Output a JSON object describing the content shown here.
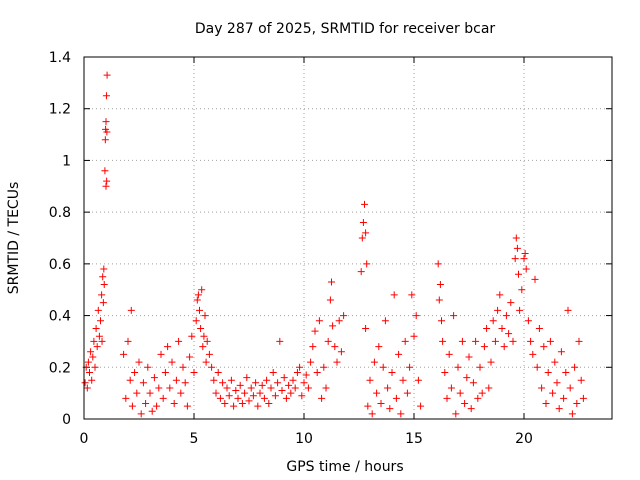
{
  "chart_data": {
    "type": "scatter",
    "title": "Day 287 of 2025, SRMTID for receiver bcar",
    "xlabel": "GPS time / hours",
    "ylabel": "SRMTID / TECUs",
    "xlim": [
      0,
      24
    ],
    "ylim": [
      0,
      1.4
    ],
    "xticks": [
      0,
      5,
      10,
      15,
      20
    ],
    "xtick_labels": [
      "0",
      "5",
      "10",
      "15",
      "20"
    ],
    "yticks": [
      0,
      0.2,
      0.4,
      0.6,
      0.8,
      1,
      1.2,
      1.4
    ],
    "ytick_labels": [
      "0",
      "0.2",
      "0.4",
      "0.6",
      "0.8",
      "1",
      "1.2",
      "1.4"
    ],
    "grid": true,
    "legend": "none",
    "marker": "+",
    "color": "#ff0000",
    "series": [
      {
        "name": "SRMTID",
        "points": [
          [
            0.05,
            0.14
          ],
          [
            0.1,
            0.2
          ],
          [
            0.15,
            0.12
          ],
          [
            0.2,
            0.22
          ],
          [
            0.25,
            0.18
          ],
          [
            0.3,
            0.26
          ],
          [
            0.35,
            0.15
          ],
          [
            0.4,
            0.24
          ],
          [
            0.45,
            0.3
          ],
          [
            0.5,
            0.2
          ],
          [
            0.55,
            0.35
          ],
          [
            0.6,
            0.28
          ],
          [
            0.65,
            0.42
          ],
          [
            0.7,
            0.32
          ],
          [
            0.75,
            0.38
          ],
          [
            0.8,
            0.48
          ],
          [
            0.85,
            0.55
          ],
          [
            0.9,
            0.58
          ],
          [
            0.92,
            0.52
          ],
          [
            0.95,
            0.96
          ],
          [
            0.97,
            1.08
          ],
          [
            1.0,
            1.15
          ],
          [
            1.02,
            1.25
          ],
          [
            1.05,
            1.33
          ],
          [
            1.0,
            0.9
          ],
          [
            1.03,
            0.92
          ],
          [
            0.98,
            1.12
          ],
          [
            1.04,
            1.11
          ],
          [
            0.88,
            0.45
          ],
          [
            0.82,
            0.3
          ],
          [
            1.8,
            0.25
          ],
          [
            1.9,
            0.08
          ],
          [
            2.0,
            0.3
          ],
          [
            2.1,
            0.15
          ],
          [
            2.15,
            0.42
          ],
          [
            2.2,
            0.05
          ],
          [
            2.3,
            0.18
          ],
          [
            2.4,
            0.1
          ],
          [
            2.5,
            0.22
          ],
          [
            2.6,
            0.02
          ],
          [
            2.7,
            0.14
          ],
          [
            2.8,
            0.06
          ],
          [
            2.9,
            0.2
          ],
          [
            3.0,
            0.1
          ],
          [
            3.1,
            0.03
          ],
          [
            3.2,
            0.16
          ],
          [
            3.3,
            0.05
          ],
          [
            3.4,
            0.12
          ],
          [
            3.5,
            0.25
          ],
          [
            3.6,
            0.08
          ],
          [
            3.7,
            0.18
          ],
          [
            3.8,
            0.28
          ],
          [
            3.9,
            0.12
          ],
          [
            4.0,
            0.22
          ],
          [
            4.1,
            0.06
          ],
          [
            4.2,
            0.15
          ],
          [
            4.3,
            0.3
          ],
          [
            4.4,
            0.1
          ],
          [
            4.5,
            0.2
          ],
          [
            4.6,
            0.14
          ],
          [
            4.7,
            0.05
          ],
          [
            4.8,
            0.24
          ],
          [
            4.9,
            0.32
          ],
          [
            5.0,
            0.18
          ],
          [
            5.1,
            0.38
          ],
          [
            5.15,
            0.46
          ],
          [
            5.2,
            0.48
          ],
          [
            5.25,
            0.42
          ],
          [
            5.3,
            0.35
          ],
          [
            5.35,
            0.5
          ],
          [
            5.4,
            0.28
          ],
          [
            5.45,
            0.32
          ],
          [
            5.5,
            0.4
          ],
          [
            5.55,
            0.22
          ],
          [
            5.6,
            0.3
          ],
          [
            5.7,
            0.25
          ],
          [
            5.8,
            0.2
          ],
          [
            5.9,
            0.15
          ],
          [
            6.0,
            0.1
          ],
          [
            6.1,
            0.18
          ],
          [
            6.2,
            0.08
          ],
          [
            6.3,
            0.14
          ],
          [
            6.4,
            0.06
          ],
          [
            6.5,
            0.12
          ],
          [
            6.6,
            0.09
          ],
          [
            6.7,
            0.15
          ],
          [
            6.8,
            0.05
          ],
          [
            6.9,
            0.11
          ],
          [
            7.0,
            0.08
          ],
          [
            7.1,
            0.13
          ],
          [
            7.2,
            0.06
          ],
          [
            7.3,
            0.1
          ],
          [
            7.4,
            0.16
          ],
          [
            7.5,
            0.07
          ],
          [
            7.6,
            0.12
          ],
          [
            7.7,
            0.09
          ],
          [
            7.8,
            0.14
          ],
          [
            7.9,
            0.05
          ],
          [
            8.0,
            0.1
          ],
          [
            8.1,
            0.13
          ],
          [
            8.2,
            0.08
          ],
          [
            8.3,
            0.15
          ],
          [
            8.4,
            0.06
          ],
          [
            8.5,
            0.12
          ],
          [
            8.6,
            0.18
          ],
          [
            8.7,
            0.09
          ],
          [
            8.8,
            0.14
          ],
          [
            8.9,
            0.3
          ],
          [
            9.0,
            0.11
          ],
          [
            9.1,
            0.16
          ],
          [
            9.2,
            0.08
          ],
          [
            9.3,
            0.13
          ],
          [
            9.4,
            0.1
          ],
          [
            9.5,
            0.15
          ],
          [
            9.6,
            0.12
          ],
          [
            9.7,
            0.18
          ],
          [
            9.8,
            0.2
          ],
          [
            9.9,
            0.09
          ],
          [
            10.0,
            0.14
          ],
          [
            10.1,
            0.17
          ],
          [
            10.2,
            0.12
          ],
          [
            10.3,
            0.22
          ],
          [
            10.4,
            0.28
          ],
          [
            10.5,
            0.34
          ],
          [
            10.6,
            0.18
          ],
          [
            10.7,
            0.38
          ],
          [
            10.8,
            0.08
          ],
          [
            10.9,
            0.2
          ],
          [
            11.0,
            0.12
          ],
          [
            11.1,
            0.3
          ],
          [
            11.2,
            0.46
          ],
          [
            11.25,
            0.53
          ],
          [
            11.3,
            0.36
          ],
          [
            11.4,
            0.28
          ],
          [
            11.5,
            0.22
          ],
          [
            11.6,
            0.38
          ],
          [
            11.7,
            0.26
          ],
          [
            11.8,
            0.4
          ],
          [
            12.6,
            0.57
          ],
          [
            12.65,
            0.7
          ],
          [
            12.7,
            0.76
          ],
          [
            12.75,
            0.83
          ],
          [
            12.8,
            0.72
          ],
          [
            12.85,
            0.6
          ],
          [
            12.8,
            0.35
          ],
          [
            12.9,
            0.05
          ],
          [
            13.0,
            0.15
          ],
          [
            13.1,
            0.02
          ],
          [
            13.2,
            0.22
          ],
          [
            13.3,
            0.1
          ],
          [
            13.4,
            0.28
          ],
          [
            13.5,
            0.06
          ],
          [
            13.6,
            0.2
          ],
          [
            13.7,
            0.38
          ],
          [
            13.8,
            0.12
          ],
          [
            13.9,
            0.04
          ],
          [
            14.0,
            0.18
          ],
          [
            14.1,
            0.48
          ],
          [
            14.2,
            0.08
          ],
          [
            14.3,
            0.25
          ],
          [
            14.4,
            0.02
          ],
          [
            14.5,
            0.15
          ],
          [
            14.6,
            0.3
          ],
          [
            14.7,
            0.1
          ],
          [
            14.8,
            0.2
          ],
          [
            14.9,
            0.48
          ],
          [
            15.0,
            0.32
          ],
          [
            15.1,
            0.4
          ],
          [
            15.2,
            0.15
          ],
          [
            15.3,
            0.05
          ],
          [
            16.1,
            0.6
          ],
          [
            16.15,
            0.46
          ],
          [
            16.2,
            0.52
          ],
          [
            16.25,
            0.38
          ],
          [
            16.3,
            0.3
          ],
          [
            16.4,
            0.18
          ],
          [
            16.5,
            0.08
          ],
          [
            16.6,
            0.25
          ],
          [
            16.7,
            0.12
          ],
          [
            16.8,
            0.4
          ],
          [
            16.9,
            0.02
          ],
          [
            17.0,
            0.2
          ],
          [
            17.1,
            0.1
          ],
          [
            17.2,
            0.3
          ],
          [
            17.3,
            0.06
          ],
          [
            17.4,
            0.16
          ],
          [
            17.5,
            0.24
          ],
          [
            17.6,
            0.04
          ],
          [
            17.7,
            0.14
          ],
          [
            17.8,
            0.3
          ],
          [
            17.9,
            0.08
          ],
          [
            18.0,
            0.2
          ],
          [
            18.1,
            0.1
          ],
          [
            18.2,
            0.28
          ],
          [
            18.3,
            0.35
          ],
          [
            18.4,
            0.12
          ],
          [
            18.5,
            0.22
          ],
          [
            18.6,
            0.38
          ],
          [
            18.7,
            0.3
          ],
          [
            18.8,
            0.42
          ],
          [
            18.9,
            0.48
          ],
          [
            19.0,
            0.35
          ],
          [
            19.1,
            0.28
          ],
          [
            19.2,
            0.4
          ],
          [
            19.3,
            0.33
          ],
          [
            19.4,
            0.45
          ],
          [
            19.5,
            0.3
          ],
          [
            19.6,
            0.62
          ],
          [
            19.65,
            0.7
          ],
          [
            19.7,
            0.66
          ],
          [
            19.75,
            0.56
          ],
          [
            19.8,
            0.42
          ],
          [
            19.9,
            0.5
          ],
          [
            20.0,
            0.62
          ],
          [
            20.05,
            0.64
          ],
          [
            20.1,
            0.58
          ],
          [
            20.2,
            0.38
          ],
          [
            20.3,
            0.3
          ],
          [
            20.4,
            0.25
          ],
          [
            20.5,
            0.54
          ],
          [
            20.6,
            0.2
          ],
          [
            20.7,
            0.35
          ],
          [
            20.8,
            0.12
          ],
          [
            20.9,
            0.28
          ],
          [
            21.0,
            0.06
          ],
          [
            21.1,
            0.18
          ],
          [
            21.2,
            0.3
          ],
          [
            21.3,
            0.1
          ],
          [
            21.4,
            0.22
          ],
          [
            21.5,
            0.14
          ],
          [
            21.6,
            0.04
          ],
          [
            21.7,
            0.26
          ],
          [
            21.8,
            0.08
          ],
          [
            21.9,
            0.18
          ],
          [
            22.0,
            0.42
          ],
          [
            22.1,
            0.12
          ],
          [
            22.2,
            0.02
          ],
          [
            22.3,
            0.2
          ],
          [
            22.4,
            0.06
          ],
          [
            22.5,
            0.3
          ],
          [
            22.6,
            0.15
          ],
          [
            22.7,
            0.08
          ]
        ]
      }
    ]
  }
}
